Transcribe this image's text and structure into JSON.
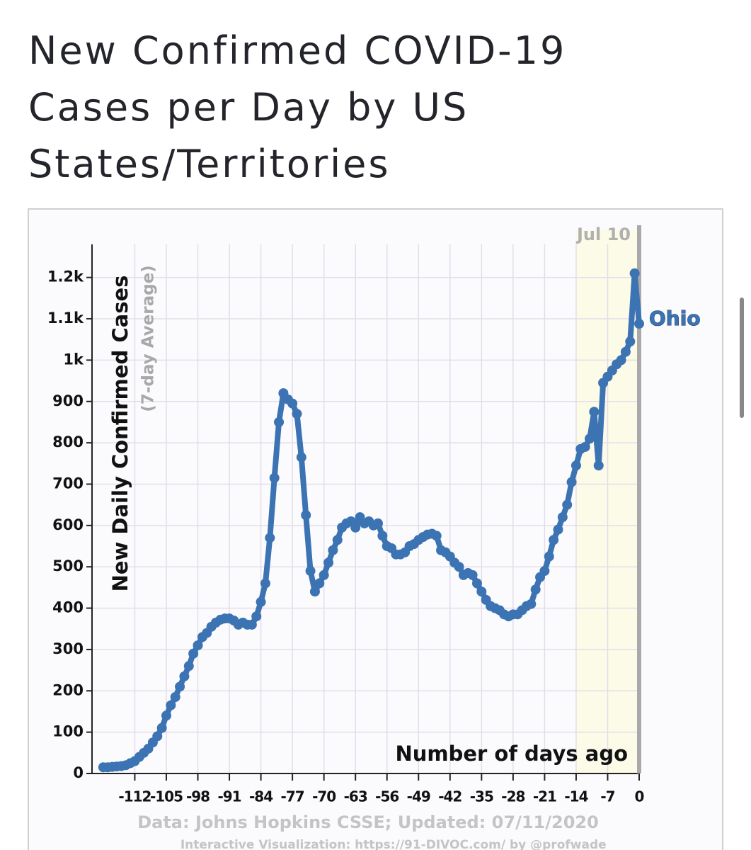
{
  "chart_data": {
    "type": "line",
    "title": "New Confirmed COVID-19 Cases per Day by US States/Territories",
    "y_label": "New Daily Confirmed Cases",
    "y_sublabel": "(7-day Average)",
    "x_label": "Number of days ago",
    "annotation": "Jul 10",
    "source": "Data: Johns Hopkins CSSE; Updated: 07/11/2020",
    "credit": "Interactive Visualization: https://91-DIVOC.com/ by @profwade_",
    "highlight_range": [
      -14,
      0
    ],
    "grid": true,
    "xlim": [
      -121.5,
      0
    ],
    "ylim": [
      0,
      1280
    ],
    "xticks": [
      -112,
      -105,
      -98,
      -91,
      -84,
      -77,
      -70,
      -63,
      -56,
      -49,
      -42,
      -35,
      -28,
      -21,
      -14,
      -7,
      0
    ],
    "yticks": [
      0,
      100,
      200,
      300,
      400,
      500,
      600,
      700,
      800,
      900,
      {
        "value": 1000,
        "label": "1k"
      },
      {
        "value": 1100,
        "label": "1.1k"
      },
      {
        "value": 1200,
        "label": "1.2k"
      }
    ],
    "x": [
      -119,
      -118,
      -117,
      -116,
      -115,
      -114,
      -113,
      -112,
      -111,
      -110,
      -109,
      -108,
      -107,
      -106,
      -105,
      -104,
      -103,
      -102,
      -101,
      -100,
      -99,
      -98,
      -97,
      -96,
      -95,
      -94,
      -93,
      -92,
      -91,
      -90,
      -89,
      -88,
      -87,
      -86,
      -85,
      -84,
      -83,
      -82,
      -81,
      -80,
      -79,
      -78,
      -77,
      -76,
      -75,
      -74,
      -73,
      -72,
      -71,
      -70,
      -69,
      -68,
      -67,
      -66,
      -65,
      -64,
      -63,
      -62,
      -61,
      -60,
      -59,
      -58,
      -57,
      -56,
      -55,
      -54,
      -53,
      -52,
      -51,
      -50,
      -49,
      -48,
      -47,
      -46,
      -45,
      -44,
      -43,
      -42,
      -41,
      -40,
      -39,
      -38,
      -37,
      -36,
      -35,
      -34,
      -33,
      -32,
      -31,
      -30,
      -29,
      -28,
      -27,
      -26,
      -25,
      -24,
      -23,
      -22,
      -21,
      -20,
      -19,
      -18,
      -17,
      -16,
      -15,
      -14,
      -13,
      -12,
      -11,
      -10,
      -9,
      -8,
      -7,
      -6,
      -5,
      -4,
      -3,
      -2,
      -1,
      0
    ],
    "series": [
      {
        "name": "Ohio",
        "color": "#3b73b3",
        "values": [
          15,
          15,
          16,
          17,
          18,
          20,
          25,
          30,
          40,
          50,
          60,
          75,
          90,
          110,
          140,
          165,
          185,
          210,
          235,
          260,
          290,
          310,
          330,
          340,
          355,
          365,
          372,
          375,
          375,
          370,
          360,
          365,
          360,
          360,
          380,
          415,
          460,
          570,
          715,
          850,
          920,
          905,
          895,
          870,
          765,
          625,
          490,
          440,
          460,
          480,
          510,
          540,
          565,
          595,
          605,
          610,
          595,
          620,
          605,
          610,
          600,
          605,
          575,
          550,
          545,
          530,
          530,
          535,
          550,
          555,
          565,
          572,
          578,
          580,
          575,
          540,
          535,
          525,
          510,
          500,
          480,
          485,
          480,
          460,
          440,
          420,
          405,
          400,
          395,
          385,
          380,
          385,
          385,
          395,
          405,
          410,
          445,
          475,
          490,
          525,
          565,
          590,
          620,
          650,
          705,
          745,
          785,
          790,
          810,
          875,
          745,
          945,
          960,
          975,
          990,
          1000,
          1020,
          1045,
          1210,
          1088
        ]
      }
    ]
  }
}
